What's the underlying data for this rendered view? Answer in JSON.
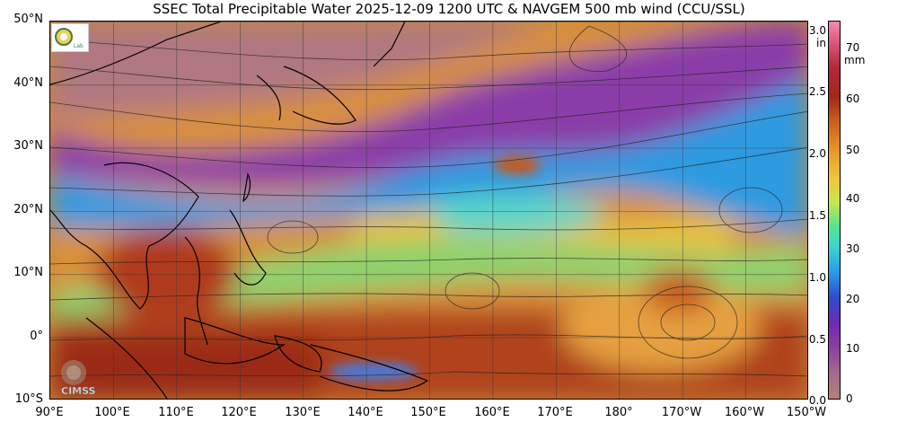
{
  "title": "SSEC Total Precipitable Water  2025-12-09 1200 UTC & NAVGEM 500 mb wind (CCU/SSL)",
  "lat_labels": [
    "50°N",
    "40°N",
    "30°N",
    "20°N",
    "10°N",
    "0°",
    "10°S"
  ],
  "lon_labels": [
    "90°E",
    "100°E",
    "110°E",
    "120°E",
    "130°E",
    "140°E",
    "150°E",
    "160°E",
    "170°E",
    "180°",
    "170°W",
    "160°W",
    "150°W"
  ],
  "colorbar": {
    "in_unit": "in",
    "mm_unit": "mm",
    "in_ticks": [
      "3.0",
      "2.5",
      "2.0",
      "1.5",
      "1.0",
      "0.5",
      "0.0"
    ],
    "mm_ticks": [
      "70",
      "60",
      "50",
      "40",
      "30",
      "20",
      "10",
      "0"
    ]
  },
  "logo_text": "CIMSS",
  "colors": {
    "dry": "#b48278",
    "moist_purple": "#8c3ca0",
    "blue": "#2aa0e6",
    "green": "#5ae68c",
    "orange": "#e69628",
    "red": "#a02818",
    "land_outline": "#000000"
  }
}
